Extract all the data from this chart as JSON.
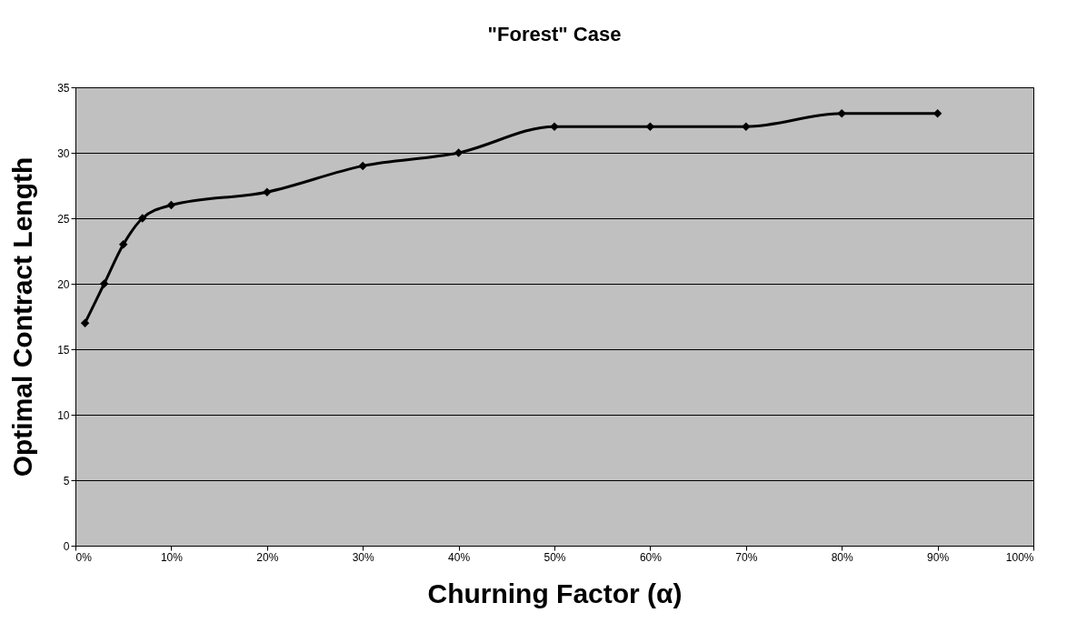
{
  "chart_data": {
    "type": "line",
    "title": "\"Forest\" Case",
    "xlabel": "Churning Factor (α)",
    "ylabel": "Optimal Contract Length",
    "x": [
      1,
      3,
      5,
      7,
      10,
      20,
      30,
      40,
      50,
      60,
      70,
      80,
      90
    ],
    "series": [
      {
        "color": "#000000",
        "values": [
          17,
          20,
          23,
          25,
          26,
          27,
          29,
          30,
          32,
          32,
          32,
          33,
          33
        ]
      }
    ],
    "xlim": [
      0,
      100
    ],
    "xticks": [
      {
        "value": 0,
        "label": "0%"
      },
      {
        "value": 10,
        "label": "10%"
      },
      {
        "value": 20,
        "label": "20%"
      },
      {
        "value": 30,
        "label": "30%"
      },
      {
        "value": 40,
        "label": "40%"
      },
      {
        "value": 50,
        "label": "50%"
      },
      {
        "value": 60,
        "label": "60%"
      },
      {
        "value": 70,
        "label": "70%"
      },
      {
        "value": 80,
        "label": "80%"
      },
      {
        "value": 90,
        "label": "90%"
      },
      {
        "value": 100,
        "label": "100%"
      }
    ],
    "ylim": [
      0,
      35
    ],
    "yticks": [
      0,
      5,
      10,
      15,
      20,
      25,
      30,
      35
    ],
    "grid": "y",
    "marker": "diamond",
    "line_style": "solid"
  }
}
